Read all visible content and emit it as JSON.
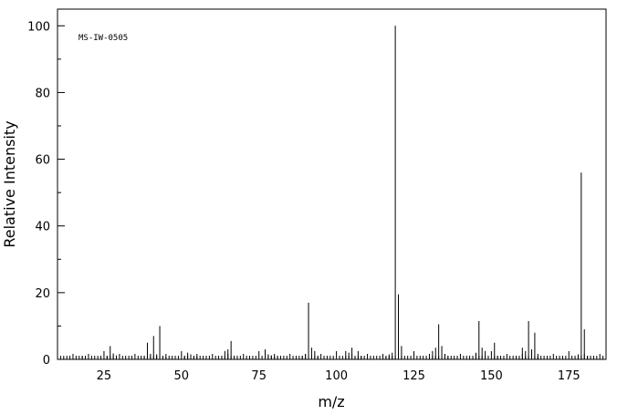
{
  "chart_data": {
    "type": "bar",
    "annotation": "MS-IW-0505",
    "xlabel": "m/z",
    "ylabel": "Relative Intensity",
    "xlim": [
      10,
      187
    ],
    "ylim": [
      0,
      105
    ],
    "x_ticks": [
      25,
      50,
      75,
      100,
      125,
      150,
      175
    ],
    "y_ticks": [
      0,
      20,
      40,
      60,
      80,
      100
    ],
    "grid": false,
    "peaks": [
      {
        "mz": 15,
        "intensity": 0.4
      },
      {
        "mz": 18,
        "intensity": 1.0
      },
      {
        "mz": 26,
        "intensity": 1.0
      },
      {
        "mz": 27,
        "intensity": 4.0
      },
      {
        "mz": 28,
        "intensity": 1.8
      },
      {
        "mz": 29,
        "intensity": 1.2
      },
      {
        "mz": 38,
        "intensity": 1.0
      },
      {
        "mz": 39,
        "intensity": 5.0
      },
      {
        "mz": 40,
        "intensity": 1.0
      },
      {
        "mz": 41,
        "intensity": 7.0
      },
      {
        "mz": 42,
        "intensity": 1.5
      },
      {
        "mz": 43,
        "intensity": 10.0
      },
      {
        "mz": 44,
        "intensity": 1.0
      },
      {
        "mz": 45,
        "intensity": 0.8
      },
      {
        "mz": 51,
        "intensity": 1.0
      },
      {
        "mz": 52,
        "intensity": 2.0
      },
      {
        "mz": 53,
        "intensity": 1.5
      },
      {
        "mz": 54,
        "intensity": 0.8
      },
      {
        "mz": 55,
        "intensity": 1.0
      },
      {
        "mz": 63,
        "intensity": 1.0
      },
      {
        "mz": 64,
        "intensity": 2.5
      },
      {
        "mz": 65,
        "intensity": 3.0
      },
      {
        "mz": 66,
        "intensity": 5.5
      },
      {
        "mz": 67,
        "intensity": 1.0
      },
      {
        "mz": 77,
        "intensity": 3.0
      },
      {
        "mz": 78,
        "intensity": 1.5
      },
      {
        "mz": 79,
        "intensity": 1.2
      },
      {
        "mz": 80,
        "intensity": 1.0
      },
      {
        "mz": 81,
        "intensity": 1.0
      },
      {
        "mz": 89,
        "intensity": 1.0
      },
      {
        "mz": 90,
        "intensity": 1.5
      },
      {
        "mz": 91,
        "intensity": 17.0
      },
      {
        "mz": 92,
        "intensity": 3.5
      },
      {
        "mz": 93,
        "intensity": 2.5
      },
      {
        "mz": 94,
        "intensity": 1.0
      },
      {
        "mz": 103,
        "intensity": 2.5
      },
      {
        "mz": 104,
        "intensity": 2.0
      },
      {
        "mz": 105,
        "intensity": 3.5
      },
      {
        "mz": 106,
        "intensity": 1.0
      },
      {
        "mz": 107,
        "intensity": 2.5
      },
      {
        "mz": 108,
        "intensity": 1.0
      },
      {
        "mz": 115,
        "intensity": 1.0
      },
      {
        "mz": 116,
        "intensity": 1.0
      },
      {
        "mz": 117,
        "intensity": 1.5
      },
      {
        "mz": 118,
        "intensity": 2.0
      },
      {
        "mz": 119,
        "intensity": 100.0
      },
      {
        "mz": 120,
        "intensity": 19.5
      },
      {
        "mz": 121,
        "intensity": 4.0
      },
      {
        "mz": 131,
        "intensity": 2.5
      },
      {
        "mz": 132,
        "intensity": 3.5
      },
      {
        "mz": 133,
        "intensity": 10.5
      },
      {
        "mz": 134,
        "intensity": 4.0
      },
      {
        "mz": 135,
        "intensity": 1.5
      },
      {
        "mz": 136,
        "intensity": 1.0
      },
      {
        "mz": 144,
        "intensity": 1.0
      },
      {
        "mz": 145,
        "intensity": 2.0
      },
      {
        "mz": 146,
        "intensity": 11.5
      },
      {
        "mz": 147,
        "intensity": 3.5
      },
      {
        "mz": 148,
        "intensity": 2.5
      },
      {
        "mz": 151,
        "intensity": 5.0
      },
      {
        "mz": 152,
        "intensity": 1.0
      },
      {
        "mz": 160,
        "intensity": 3.5
      },
      {
        "mz": 161,
        "intensity": 2.5
      },
      {
        "mz": 162,
        "intensity": 11.5
      },
      {
        "mz": 163,
        "intensity": 3.0
      },
      {
        "mz": 164,
        "intensity": 8.0
      },
      {
        "mz": 165,
        "intensity": 1.0
      },
      {
        "mz": 178,
        "intensity": 1.5
      },
      {
        "mz": 179,
        "intensity": 56.0
      },
      {
        "mz": 180,
        "intensity": 9.0
      },
      {
        "mz": 181,
        "intensity": 1.0
      }
    ]
  }
}
